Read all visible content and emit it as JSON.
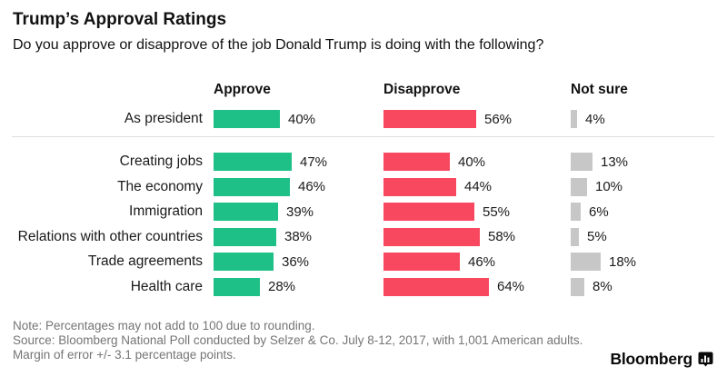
{
  "header": {
    "title": "Trump’s Approval Ratings",
    "subtitle": "Do you approve or disapprove of the job Donald Trump is doing with the following?"
  },
  "chart_data": {
    "type": "bar",
    "orientation": "horizontal",
    "unit": "%",
    "value_suffix": "%",
    "columns": [
      "Approve",
      "Disapprove",
      "Not sure"
    ],
    "colors": {
      "approve": "#1ec087",
      "disapprove": "#f8485f",
      "not_sure": "#c7c7c7"
    },
    "categories": [
      "As president",
      "Creating jobs",
      "The economy",
      "Immigration",
      "Relations with other countries",
      "Trade agreements",
      "Health care"
    ],
    "series": [
      {
        "name": "Approve",
        "values": [
          40,
          47,
          46,
          39,
          38,
          36,
          28
        ]
      },
      {
        "name": "Disapprove",
        "values": [
          56,
          40,
          44,
          55,
          58,
          46,
          64
        ]
      },
      {
        "name": "Not sure",
        "values": [
          4,
          13,
          10,
          6,
          5,
          18,
          8
        ]
      }
    ],
    "xlim": [
      0,
      100
    ],
    "grid": false,
    "legend_position": "column-headers",
    "separator_after_row": "As president"
  },
  "footer": {
    "note": "Note: Percentages may not add to 100 due to rounding.",
    "source": "Source: Bloomberg National Poll conducted by Selzer & Co. July 8-12, 2017, with 1,001 American adults. Margin of error +/- 3.1 percentage points.",
    "brand": "Bloomberg"
  }
}
